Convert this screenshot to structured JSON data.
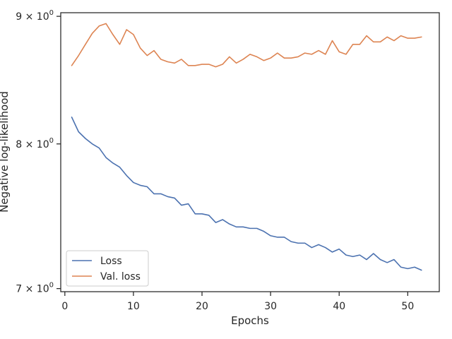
{
  "chart_data": {
    "type": "line",
    "xlabel": "Epochs",
    "ylabel": "Negative log-likelihood",
    "xlim": [
      -0.6,
      54.6
    ],
    "ylim": [
      6.98,
      9.03
    ],
    "y_scale": "log",
    "x_ticks": [
      0,
      10,
      20,
      30,
      40,
      50
    ],
    "y_ticks": [
      {
        "value": 7,
        "base": "7",
        "sup": "0"
      },
      {
        "value": 8,
        "base": "8",
        "sup": "0"
      },
      {
        "value": 9,
        "base": "9",
        "sup": "0"
      }
    ],
    "legend_position": "lower-left",
    "grid": false,
    "x": [
      1,
      2,
      3,
      4,
      5,
      6,
      7,
      8,
      9,
      10,
      11,
      12,
      13,
      14,
      15,
      16,
      17,
      18,
      19,
      20,
      21,
      22,
      23,
      24,
      25,
      26,
      27,
      28,
      29,
      30,
      31,
      32,
      33,
      34,
      35,
      36,
      37,
      38,
      39,
      40,
      41,
      42,
      43,
      44,
      45,
      46,
      47,
      48,
      49,
      50,
      51,
      52
    ],
    "series": [
      {
        "name": "Loss",
        "color": "#4c72b0",
        "values": [
          8.2,
          8.09,
          8.04,
          8.0,
          7.97,
          7.9,
          7.86,
          7.83,
          7.77,
          7.72,
          7.7,
          7.69,
          7.64,
          7.64,
          7.62,
          7.61,
          7.56,
          7.57,
          7.5,
          7.5,
          7.49,
          7.44,
          7.46,
          7.43,
          7.41,
          7.41,
          7.4,
          7.4,
          7.38,
          7.35,
          7.34,
          7.34,
          7.31,
          7.3,
          7.3,
          7.27,
          7.29,
          7.27,
          7.24,
          7.26,
          7.22,
          7.21,
          7.22,
          7.19,
          7.23,
          7.19,
          7.17,
          7.19,
          7.14,
          7.13,
          7.14,
          7.12
        ]
      },
      {
        "name": "Val. loss",
        "color": "#dd8452",
        "values": [
          8.6,
          8.68,
          8.77,
          8.86,
          8.92,
          8.94,
          8.85,
          8.77,
          8.89,
          8.85,
          8.74,
          8.68,
          8.72,
          8.65,
          8.63,
          8.62,
          8.65,
          8.6,
          8.6,
          8.61,
          8.61,
          8.59,
          8.61,
          8.67,
          8.62,
          8.65,
          8.69,
          8.67,
          8.64,
          8.66,
          8.7,
          8.66,
          8.66,
          8.67,
          8.7,
          8.69,
          8.72,
          8.69,
          8.8,
          8.71,
          8.69,
          8.77,
          8.77,
          8.84,
          8.79,
          8.79,
          8.83,
          8.8,
          8.84,
          8.82,
          8.82,
          8.83
        ]
      }
    ]
  }
}
